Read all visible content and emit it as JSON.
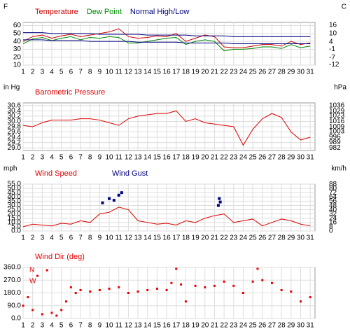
{
  "chart_data": [
    {
      "type": "line",
      "y_label": "F",
      "y2_label": "C",
      "xlim": [
        1,
        31.5
      ],
      "xticks": [
        1,
        2,
        3,
        4,
        5,
        6,
        7,
        8,
        9,
        10,
        11,
        12,
        13,
        14,
        15,
        16,
        17,
        18,
        19,
        20,
        21,
        22,
        23,
        24,
        25,
        26,
        27,
        28,
        29,
        30,
        31
      ],
      "ylim": [
        10,
        64
      ],
      "yticks": [
        60,
        50,
        40,
        30,
        20,
        10
      ],
      "y2lim": [
        -12.2,
        17.8
      ],
      "y2ticks": [
        16,
        10,
        4,
        -1,
        -7,
        -12
      ],
      "grid": true,
      "x": [
        1,
        2,
        3,
        4,
        5,
        6,
        7,
        8,
        9,
        10,
        11,
        12,
        13,
        14,
        15,
        16,
        17,
        18,
        19,
        20,
        21,
        22,
        23,
        24,
        25,
        26,
        27,
        28,
        29,
        30,
        31
      ],
      "series": [
        {
          "name": "Temperature",
          "color": "#cc0000",
          "values": [
            40,
            46,
            48,
            44,
            47,
            49,
            46,
            48,
            50,
            52,
            56,
            46,
            44,
            45,
            47,
            46,
            50,
            40,
            44,
            48,
            46,
            33,
            32,
            32,
            34,
            36,
            36,
            34,
            40,
            36,
            38
          ]
        },
        {
          "name": "Dew Point",
          "color": "#008800",
          "values": [
            37,
            43,
            45,
            41,
            44,
            46,
            42,
            45,
            44,
            46,
            45,
            38,
            38,
            40,
            42,
            44,
            45,
            36,
            40,
            42,
            40,
            28,
            30,
            30,
            31,
            33,
            33,
            31,
            36,
            32,
            34
          ]
        },
        {
          "name": "Normal High/Low",
          "color": "#000080",
          "high": [
            51,
            51,
            51,
            50,
            50,
            50,
            50,
            50,
            49,
            49,
            49,
            49,
            49,
            48,
            48,
            48,
            48,
            48,
            47,
            47,
            47,
            47,
            46,
            46,
            46,
            46,
            46,
            46,
            46,
            46,
            46
          ],
          "low": [
            42,
            42,
            42,
            41,
            41,
            41,
            41,
            40,
            40,
            40,
            40,
            40,
            39,
            39,
            39,
            39,
            39,
            38,
            38,
            38,
            38,
            38,
            37,
            37,
            37,
            37,
            37,
            37,
            37,
            37,
            37
          ]
        }
      ]
    },
    {
      "type": "line",
      "y_label": "in Hg",
      "y2_label": "hPa",
      "xlim": [
        1,
        31.5
      ],
      "xticks": [
        1,
        2,
        3,
        4,
        5,
        6,
        7,
        8,
        9,
        10,
        11,
        12,
        13,
        14,
        15,
        16,
        17,
        18,
        19,
        20,
        21,
        22,
        23,
        24,
        25,
        26,
        27,
        28,
        29,
        30,
        31
      ],
      "ylim": [
        28.9,
        30.7
      ],
      "yticks": [
        {
          "value": 30.6,
          "label": "30.6"
        },
        {
          "value": 30.4,
          "label": "30.4"
        },
        {
          "value": 30.2,
          "label": "30.2"
        },
        {
          "value": 30.0,
          "label": "30.0"
        },
        {
          "value": 29.8,
          "label": "29.8"
        },
        {
          "value": 29.6,
          "label": "29.6"
        },
        {
          "value": 29.4,
          "label": "29.4"
        },
        {
          "value": 29.2,
          "label": "29.2"
        },
        {
          "value": 29.0,
          "label": "29.0"
        }
      ],
      "y2lim": [
        978.7,
        1039.6
      ],
      "y2ticks": [
        1036,
        1029,
        1023,
        1016,
        1009,
        1003,
        996,
        989,
        982
      ],
      "grid": true,
      "x": [
        1,
        2,
        3,
        4,
        5,
        6,
        7,
        8,
        9,
        10,
        11,
        12,
        13,
        14,
        15,
        16,
        17,
        18,
        19,
        20,
        21,
        22,
        23,
        24,
        25,
        26,
        27,
        28,
        29,
        30,
        31
      ],
      "series": [
        {
          "name": "Barometric Pressure",
          "color": "#dd0000",
          "values": [
            29.85,
            29.8,
            29.95,
            30.05,
            30.05,
            30.05,
            30.1,
            30.1,
            30.05,
            29.95,
            29.85,
            30.1,
            30.2,
            30.25,
            30.3,
            30.3,
            30.4,
            30.0,
            30.1,
            29.95,
            29.9,
            29.85,
            29.8,
            29.1,
            29.7,
            30.1,
            30.3,
            30.15,
            29.6,
            29.3,
            29.4
          ]
        }
      ]
    },
    {
      "type": "line",
      "y_label": "mph",
      "y2_label": "km/h",
      "xlim": [
        1,
        31.5
      ],
      "xticks": [
        1,
        2,
        3,
        4,
        5,
        6,
        7,
        8,
        9,
        10,
        11,
        12,
        13,
        14,
        15,
        16,
        17,
        18,
        19,
        20,
        21,
        22,
        23,
        24,
        25,
        26,
        27,
        28,
        29,
        30,
        31
      ],
      "ylim": [
        0,
        55
      ],
      "yticks": [
        {
          "value": 55,
          "label": "55.0"
        },
        {
          "value": 50,
          "label": "50.0"
        },
        {
          "value": 45,
          "label": "45.0"
        },
        {
          "value": 40,
          "label": "40.0"
        },
        {
          "value": 35,
          "label": "35.0"
        },
        {
          "value": 30,
          "label": "30.0"
        },
        {
          "value": 25,
          "label": "25.0"
        },
        {
          "value": 20,
          "label": "20.0"
        },
        {
          "value": 15,
          "label": "15.0"
        },
        {
          "value": 10,
          "label": "10.0"
        },
        {
          "value": 5,
          "label": "5.0"
        },
        {
          "value": 0,
          "label": "0.0"
        }
      ],
      "y2lim": [
        0,
        88.5
      ],
      "y2ticks": [
        88,
        80,
        72,
        64,
        56,
        48,
        40,
        32,
        24,
        16,
        8,
        0
      ],
      "grid": true,
      "x": [
        1,
        2,
        3,
        4,
        5,
        6,
        7,
        8,
        9,
        10,
        11,
        12,
        13,
        14,
        15,
        16,
        17,
        18,
        19,
        20,
        21,
        22,
        23,
        24,
        25,
        26,
        27,
        28,
        29,
        30,
        31
      ],
      "series": [
        {
          "name": "Wind Speed",
          "color": "#dd0000",
          "values": [
            5,
            8,
            7,
            6,
            9,
            8,
            12,
            10,
            20,
            22,
            28,
            25,
            12,
            10,
            8,
            9,
            7,
            12,
            10,
            15,
            18,
            20,
            10,
            12,
            14,
            6,
            10,
            14,
            12,
            8,
            6
          ]
        },
        {
          "name": "Wind Gust",
          "color": "#000080",
          "type": "scatter",
          "x": [
            9.3,
            10,
            10.5,
            11,
            11.3,
            21.4,
            21.5,
            21.6
          ],
          "values": [
            33,
            38,
            36,
            42,
            45,
            30,
            38,
            34
          ]
        }
      ]
    },
    {
      "type": "scatter",
      "annotations": [
        "N",
        "W"
      ],
      "xlim": [
        1,
        31.5
      ],
      "xticks": [
        1,
        2,
        3,
        4,
        5,
        6,
        7,
        8,
        9,
        10,
        11,
        12,
        13,
        14,
        15,
        16,
        17,
        18,
        19,
        20,
        21,
        22,
        23,
        24,
        25,
        26,
        27,
        28,
        29,
        30,
        31
      ],
      "ylim": [
        0,
        360
      ],
      "yticks": [
        {
          "value": 360,
          "label": "360.0"
        },
        {
          "value": 270,
          "label": "270.0"
        },
        {
          "value": 180,
          "label": "180.0"
        },
        {
          "value": 90,
          "label": "90.0"
        },
        {
          "value": 0,
          "label": "0.0"
        }
      ],
      "grid": true,
      "x": [
        1,
        1.5,
        2,
        2.5,
        3,
        3.5,
        4,
        4.5,
        5,
        5.5,
        6,
        6.5,
        7,
        8,
        9,
        10,
        11,
        12,
        13,
        14,
        15,
        16,
        16.5,
        17,
        17.5,
        18,
        19,
        20,
        21,
        22,
        23,
        24,
        25,
        25.5,
        26,
        27,
        28,
        29,
        30,
        31
      ],
      "series": [
        {
          "name": "Wind Dir (deg)",
          "color": "#ee0000",
          "values": [
            90,
            150,
            60,
            300,
            30,
            340,
            40,
            20,
            60,
            120,
            220,
            180,
            200,
            190,
            200,
            210,
            220,
            180,
            190,
            200,
            210,
            200,
            250,
            350,
            240,
            120,
            230,
            220,
            230,
            260,
            230,
            180,
            260,
            350,
            270,
            250,
            200,
            190,
            120,
            150
          ]
        }
      ]
    }
  ]
}
